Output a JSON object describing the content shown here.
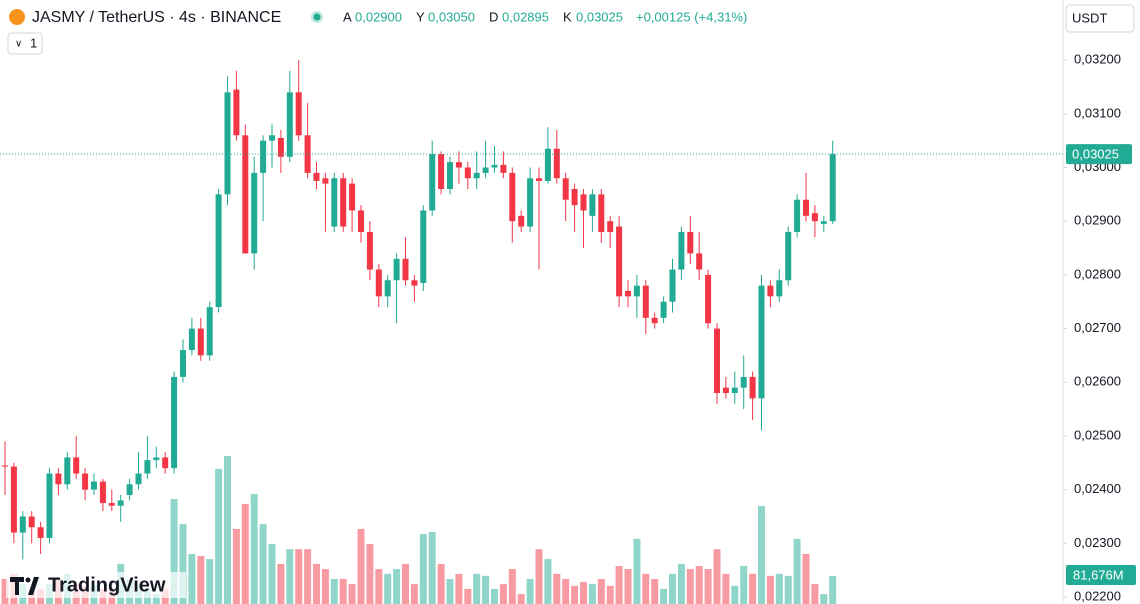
{
  "header": {
    "symbol": "JASMY / TetherUS · 4s · BINANCE",
    "o_key": "A",
    "o": "0,02900",
    "h_key": "Y",
    "h": "0,03050",
    "l_key": "D",
    "l": "0,02895",
    "c_key": "K",
    "c": "0,03025",
    "change": "+0,00125 (+4,31%)",
    "interval_button": "1",
    "currency": "USDT",
    "brand": "TradingView"
  },
  "chart_data": {
    "type": "candlestick",
    "up_color": "#22ab94",
    "down_color": "#f23645",
    "ylim": [
      0.02187,
      0.03312
    ],
    "yticks": [
      {
        "value": 0.032,
        "label": "0,03200"
      },
      {
        "value": 0.031,
        "label": "0,03100"
      },
      {
        "value": 0.03,
        "label": "0,03000"
      },
      {
        "value": 0.029,
        "label": "0,02900"
      },
      {
        "value": 0.028,
        "label": "0,02800"
      },
      {
        "value": 0.027,
        "label": "0,02700"
      },
      {
        "value": 0.026,
        "label": "0,02600"
      },
      {
        "value": 0.025,
        "label": "0,02500"
      },
      {
        "value": 0.024,
        "label": "0,02400"
      },
      {
        "value": 0.023,
        "label": "0,02300"
      },
      {
        "value": 0.022,
        "label": "0,02200"
      }
    ],
    "open": [
      0.02445,
      0.02443,
      0.0232,
      0.0235,
      0.0233,
      0.0231,
      0.0243,
      0.0241,
      0.0246,
      0.0243,
      0.024,
      0.02415,
      0.02375,
      0.0237,
      0.0239,
      0.0241,
      0.0243,
      0.02455,
      0.0246,
      0.0244,
      0.0261,
      0.0266,
      0.027,
      0.0265,
      0.0274,
      0.0295,
      0.03145,
      0.0306,
      0.0284,
      0.0299,
      0.0305,
      0.03055,
      0.0302,
      0.0314,
      0.0306,
      0.0299,
      0.0298,
      0.0289,
      0.0298,
      0.0297,
      0.0292,
      0.0288,
      0.0281,
      0.0276,
      0.0279,
      0.0283,
      0.0279,
      0.02785,
      0.0292,
      0.03025,
      0.0296,
      0.0301,
      0.03,
      0.0298,
      0.0299,
      0.03,
      0.03005,
      0.0299,
      0.0291,
      0.0289,
      0.0298,
      0.02975,
      0.03035,
      0.0298,
      0.0296,
      0.0295,
      0.0291,
      0.0295,
      0.029,
      0.0289,
      0.0277,
      0.0276,
      0.0278,
      0.0272,
      0.0272,
      0.0275,
      0.0281,
      0.0288,
      0.0284,
      0.028,
      0.027,
      0.0259,
      0.0258,
      0.0259,
      0.0261,
      0.0257,
      0.0278,
      0.0276,
      0.0279,
      0.0288,
      0.0294,
      0.02915,
      0.02895,
      0.029
    ],
    "high": [
      0.0249,
      0.0245,
      0.0236,
      0.0236,
      0.0234,
      0.0244,
      0.0244,
      0.0247,
      0.025,
      0.0244,
      0.0243,
      0.0242,
      0.024,
      0.0239,
      0.0242,
      0.0247,
      0.025,
      0.0248,
      0.0247,
      0.0262,
      0.0268,
      0.0272,
      0.0272,
      0.0275,
      0.0296,
      0.0317,
      0.0318,
      0.0308,
      0.0302,
      0.0306,
      0.0308,
      0.0307,
      0.0318,
      0.032,
      0.0312,
      0.0301,
      0.0299,
      0.0299,
      0.0299,
      0.0298,
      0.0293,
      0.029,
      0.0282,
      0.028,
      0.0284,
      0.0287,
      0.028,
      0.0293,
      0.0305,
      0.0303,
      0.0302,
      0.0303,
      0.0301,
      0.0303,
      0.0305,
      0.0304,
      0.0303,
      0.03,
      0.0292,
      0.03,
      0.03,
      0.03075,
      0.0307,
      0.0299,
      0.0297,
      0.0296,
      0.0296,
      0.0296,
      0.0291,
      0.0291,
      0.0279,
      0.028,
      0.0279,
      0.0273,
      0.0276,
      0.0283,
      0.0289,
      0.0291,
      0.0288,
      0.0281,
      0.0271,
      0.0261,
      0.0262,
      0.0265,
      0.0262,
      0.028,
      0.0279,
      0.0281,
      0.0289,
      0.0295,
      0.0299,
      0.0293,
      0.0291,
      0.0305
    ],
    "low": [
      0.0239,
      0.023,
      0.0227,
      0.023,
      0.0228,
      0.023,
      0.0239,
      0.024,
      0.0242,
      0.0238,
      0.0239,
      0.0236,
      0.0236,
      0.0234,
      0.0238,
      0.024,
      0.0242,
      0.0244,
      0.0243,
      0.0243,
      0.026,
      0.0265,
      0.0264,
      0.0264,
      0.0273,
      0.0293,
      0.0305,
      0.0284,
      0.0281,
      0.029,
      0.03,
      0.0299,
      0.0301,
      0.0305,
      0.0298,
      0.0296,
      0.0288,
      0.0288,
      0.0288,
      0.0288,
      0.0286,
      0.0279,
      0.0274,
      0.0274,
      0.0271,
      0.0278,
      0.0275,
      0.0277,
      0.0291,
      0.0295,
      0.0295,
      0.0297,
      0.0296,
      0.0296,
      0.0298,
      0.0299,
      0.0298,
      0.0286,
      0.0288,
      0.0288,
      0.0281,
      0.0297,
      0.0297,
      0.029,
      0.0288,
      0.0285,
      0.0288,
      0.0286,
      0.0285,
      0.0274,
      0.0274,
      0.0272,
      0.0269,
      0.027,
      0.0271,
      0.0273,
      0.0279,
      0.0282,
      0.0279,
      0.027,
      0.0256,
      0.0257,
      0.0256,
      0.0255,
      0.0253,
      0.0251,
      0.0274,
      0.0275,
      0.0278,
      0.0287,
      0.029,
      0.0287,
      0.0288,
      0.02895
    ],
    "close": [
      0.02443,
      0.0232,
      0.0235,
      0.0233,
      0.0231,
      0.0243,
      0.0241,
      0.0246,
      0.0243,
      0.024,
      0.02415,
      0.02375,
      0.0237,
      0.0238,
      0.0241,
      0.0243,
      0.02455,
      0.0246,
      0.0244,
      0.0261,
      0.0266,
      0.027,
      0.0265,
      0.0274,
      0.0295,
      0.0314,
      0.0306,
      0.0284,
      0.0299,
      0.0305,
      0.0306,
      0.0302,
      0.0314,
      0.0306,
      0.0299,
      0.02975,
      0.0297,
      0.0298,
      0.0289,
      0.0292,
      0.0288,
      0.0281,
      0.0276,
      0.0279,
      0.0283,
      0.0279,
      0.0278,
      0.0292,
      0.03025,
      0.0296,
      0.0301,
      0.03,
      0.0298,
      0.0299,
      0.03,
      0.03005,
      0.0299,
      0.029,
      0.0289,
      0.0298,
      0.02975,
      0.03035,
      0.0298,
      0.0294,
      0.0293,
      0.0292,
      0.0295,
      0.0288,
      0.0288,
      0.0276,
      0.0276,
      0.0278,
      0.0272,
      0.0271,
      0.0275,
      0.0281,
      0.0288,
      0.0284,
      0.0281,
      0.0271,
      0.0258,
      0.0258,
      0.0259,
      0.0261,
      0.0257,
      0.0278,
      0.0276,
      0.0279,
      0.0288,
      0.0294,
      0.0291,
      0.029,
      0.029,
      0.03025
    ],
    "last_label": "0,03025",
    "volume": [
      73,
      88,
      58,
      44,
      44,
      58,
      73,
      88,
      58,
      53,
      53,
      44,
      44,
      117,
      73,
      58,
      44,
      29,
      44,
      306,
      233,
      146,
      140,
      131,
      394,
      432,
      219,
      292,
      321,
      233,
      175,
      117,
      160,
      160,
      160,
      117,
      102,
      73,
      73,
      58,
      219,
      175,
      102,
      88,
      102,
      117,
      58,
      204,
      210,
      117,
      73,
      88,
      44,
      88,
      82,
      44,
      58,
      102,
      29,
      73,
      160,
      131,
      88,
      73,
      53,
      64,
      58,
      73,
      53,
      111,
      102,
      190,
      88,
      73,
      44,
      88,
      117,
      102,
      111,
      102,
      160,
      88,
      53,
      111,
      88,
      286,
      82,
      88,
      82,
      190,
      146,
      58,
      29,
      81.676
    ],
    "volume_ylim": [
      0,
      1762
    ],
    "volume_label": "81,676M"
  }
}
